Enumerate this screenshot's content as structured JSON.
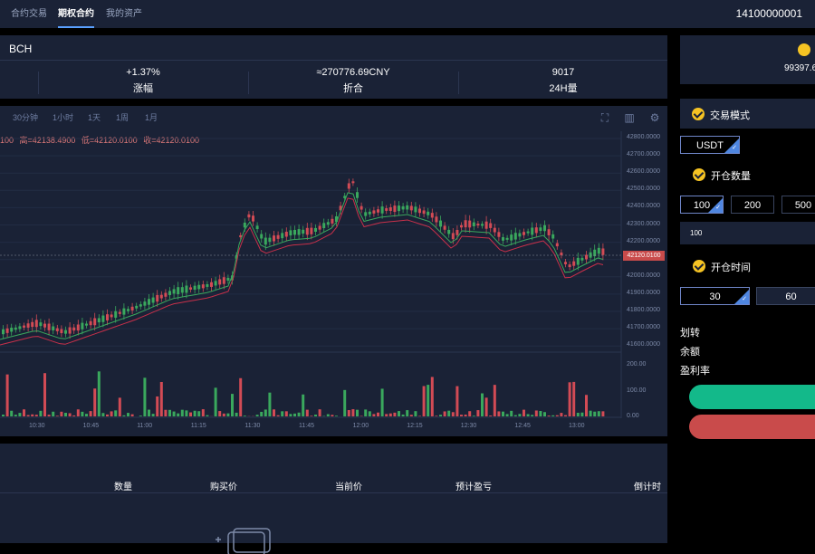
{
  "nav": {
    "items": [
      {
        "label": "合约交易"
      },
      {
        "label": "期权合约"
      },
      {
        "label": "我的资产"
      }
    ],
    "account": "14100000001"
  },
  "ticker": {
    "symbol": "BCH",
    "stats": [
      {
        "value": "+1.37%",
        "label": "涨幅"
      },
      {
        "value": "≈270776.69CNY",
        "label": "折合"
      },
      {
        "value": "9017",
        "label": "24H量"
      }
    ]
  },
  "chart": {
    "timeframes": [
      "30分钟",
      "1小时",
      "1天",
      "1周",
      "1月"
    ],
    "ohlc": {
      "open": "100",
      "high": "高=42138.4900",
      "low": "低=42120.0100",
      "close": "收=42120.0100"
    },
    "last_price": "42120.0100",
    "price_ticks": [
      "42800.0000",
      "42700.0000",
      "42600.0000",
      "42500.0000",
      "42400.0000",
      "42300.0000",
      "42200.0000",
      "42100.0000",
      "42000.0000",
      "41900.0000",
      "41800.0000",
      "41700.0000",
      "41600.0000"
    ],
    "volume_ticks": [
      "200.00",
      "100.00",
      "0.00"
    ],
    "time_ticks": [
      "10:30",
      "10:45",
      "11:00",
      "11:15",
      "11:30",
      "11:45",
      "12:00",
      "12:15",
      "12:30",
      "12:45",
      "13:00"
    ]
  },
  "orders": {
    "columns": [
      "数量",
      "购买价",
      "当前价",
      "预计盈亏",
      "倒计时"
    ]
  },
  "right": {
    "balance": "99397.6",
    "mode_title": "交易模式",
    "currency": "USDT",
    "qty_title": "开仓数量",
    "qty_options": [
      "100",
      "200",
      "500"
    ],
    "qty_input": "100",
    "time_title": "开仓时间",
    "time_options": [
      "30",
      "60"
    ],
    "info_labels": [
      "划转",
      "余额",
      "盈利率"
    ]
  },
  "colors": {
    "panel": "#1a2236",
    "up": "#3aa85d",
    "down": "#d24b55",
    "buy_button": "#13b98a",
    "sell_button": "#c94b4b",
    "accent": "#5aa0ff"
  }
}
